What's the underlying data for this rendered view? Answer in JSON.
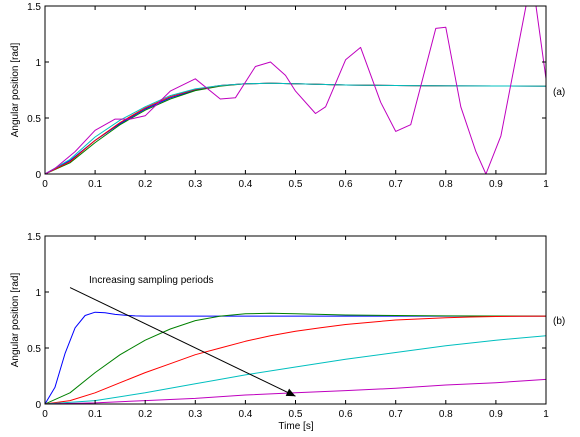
{
  "chart_data": [
    {
      "type": "line",
      "panel_label": "(a)",
      "xlabel": "",
      "ylabel": "Angular position [rad]",
      "xlim": [
        0,
        1
      ],
      "ylim": [
        0,
        1.5
      ],
      "x_ticks": [
        "0",
        "0.1",
        "0.2",
        "0.3",
        "0.4",
        "0.5",
        "0.6",
        "0.7",
        "0.8",
        "0.9",
        "1"
      ],
      "y_ticks": [
        "0",
        "0.5",
        "1",
        "1.5"
      ],
      "grid": false,
      "series": [
        {
          "color": "#0000ff",
          "x": [
            0,
            0.05,
            0.1,
            0.15,
            0.2,
            0.25,
            0.3,
            0.35,
            0.4,
            0.45,
            0.5,
            0.55,
            0.6,
            0.7,
            0.8,
            0.9,
            1.0
          ],
          "y": [
            0,
            0.12,
            0.3,
            0.45,
            0.58,
            0.68,
            0.75,
            0.79,
            0.805,
            0.81,
            0.805,
            0.8,
            0.795,
            0.79,
            0.787,
            0.786,
            0.785
          ]
        },
        {
          "color": "#008000",
          "x": [
            0,
            0.05,
            0.1,
            0.15,
            0.2,
            0.25,
            0.3,
            0.35,
            0.4,
            0.45,
            0.5,
            0.55,
            0.6,
            0.7,
            0.8,
            0.9,
            1.0
          ],
          "y": [
            0,
            0.1,
            0.28,
            0.44,
            0.57,
            0.67,
            0.745,
            0.785,
            0.805,
            0.81,
            0.806,
            0.8,
            0.795,
            0.79,
            0.787,
            0.786,
            0.785
          ]
        },
        {
          "color": "#ff0000",
          "x": [
            0,
            0.05,
            0.1,
            0.15,
            0.2,
            0.25,
            0.3,
            0.35,
            0.4,
            0.45,
            0.5,
            0.55,
            0.6,
            0.7,
            0.8,
            0.9,
            1.0
          ],
          "y": [
            0,
            0.11,
            0.3,
            0.46,
            0.59,
            0.69,
            0.755,
            0.79,
            0.806,
            0.81,
            0.806,
            0.8,
            0.795,
            0.79,
            0.787,
            0.786,
            0.785
          ]
        },
        {
          "color": "#00bfbf",
          "x": [
            0,
            0.05,
            0.1,
            0.15,
            0.2,
            0.25,
            0.3,
            0.35,
            0.4,
            0.45,
            0.5,
            0.55,
            0.6,
            0.7,
            0.8,
            0.9,
            1.0
          ],
          "y": [
            0,
            0.13,
            0.33,
            0.48,
            0.6,
            0.7,
            0.76,
            0.79,
            0.806,
            0.81,
            0.805,
            0.8,
            0.795,
            0.79,
            0.787,
            0.786,
            0.785
          ]
        },
        {
          "color": "#bf00bf",
          "x": [
            0,
            0.02,
            0.06,
            0.1,
            0.14,
            0.17,
            0.2,
            0.25,
            0.3,
            0.35,
            0.38,
            0.42,
            0.45,
            0.48,
            0.5,
            0.54,
            0.56,
            0.6,
            0.63,
            0.67,
            0.7,
            0.73,
            0.78,
            0.8,
            0.83,
            0.86,
            0.88,
            0.91,
            0.96,
            0.98,
            1.0
          ],
          "y": [
            0,
            0.05,
            0.2,
            0.39,
            0.49,
            0.49,
            0.52,
            0.74,
            0.85,
            0.67,
            0.68,
            0.96,
            1.0,
            0.88,
            0.74,
            0.54,
            0.6,
            1.02,
            1.13,
            0.64,
            0.38,
            0.44,
            1.3,
            1.31,
            0.6,
            0.2,
            0.0,
            0.34,
            1.5,
            1.5,
            0.85
          ]
        }
      ]
    },
    {
      "type": "line",
      "panel_label": "(b)",
      "xlabel": "Time [s]",
      "ylabel": "Angular position [rad]",
      "xlim": [
        0,
        1
      ],
      "ylim": [
        0,
        1.5
      ],
      "x_ticks": [
        "0",
        "0.1",
        "0.2",
        "0.3",
        "0.4",
        "0.5",
        "0.6",
        "0.7",
        "0.8",
        "0.9",
        "1"
      ],
      "y_ticks": [
        "0",
        "0.5",
        "1",
        "1.5"
      ],
      "grid": false,
      "annotation": {
        "text": "Increasing sampling periods",
        "arrow_from": [
          0.05,
          1.04
        ],
        "arrow_to": [
          0.5,
          0.07
        ]
      },
      "series": [
        {
          "color": "#0000ff",
          "x": [
            0,
            0.02,
            0.04,
            0.06,
            0.08,
            0.1,
            0.12,
            0.14,
            0.16,
            0.18,
            0.2,
            0.25,
            0.3,
            0.4,
            0.5,
            0.6,
            0.8,
            1.0
          ],
          "y": [
            0,
            0.15,
            0.45,
            0.68,
            0.79,
            0.82,
            0.815,
            0.8,
            0.792,
            0.787,
            0.785,
            0.785,
            0.785,
            0.785,
            0.785,
            0.785,
            0.785,
            0.785
          ]
        },
        {
          "color": "#008000",
          "x": [
            0,
            0.05,
            0.1,
            0.15,
            0.2,
            0.25,
            0.3,
            0.35,
            0.4,
            0.45,
            0.5,
            0.55,
            0.6,
            0.7,
            0.8,
            0.9,
            1.0
          ],
          "y": [
            0,
            0.1,
            0.28,
            0.44,
            0.57,
            0.67,
            0.745,
            0.785,
            0.805,
            0.81,
            0.806,
            0.8,
            0.795,
            0.79,
            0.787,
            0.786,
            0.785
          ]
        },
        {
          "color": "#ff0000",
          "x": [
            0,
            0.05,
            0.1,
            0.15,
            0.2,
            0.25,
            0.3,
            0.35,
            0.4,
            0.45,
            0.5,
            0.55,
            0.6,
            0.65,
            0.7,
            0.75,
            0.8,
            0.85,
            0.9,
            0.95,
            1.0
          ],
          "y": [
            0,
            0.03,
            0.1,
            0.19,
            0.28,
            0.36,
            0.44,
            0.5,
            0.56,
            0.61,
            0.65,
            0.68,
            0.71,
            0.73,
            0.75,
            0.76,
            0.77,
            0.777,
            0.781,
            0.783,
            0.785
          ]
        },
        {
          "color": "#00bfbf",
          "x": [
            0,
            0.1,
            0.2,
            0.3,
            0.4,
            0.5,
            0.6,
            0.7,
            0.8,
            0.9,
            1.0
          ],
          "y": [
            0,
            0.03,
            0.1,
            0.18,
            0.26,
            0.33,
            0.4,
            0.46,
            0.52,
            0.57,
            0.61
          ]
        },
        {
          "color": "#bf00bf",
          "x": [
            0,
            0.1,
            0.2,
            0.3,
            0.4,
            0.5,
            0.6,
            0.7,
            0.8,
            0.9,
            1.0
          ],
          "y": [
            0,
            0.01,
            0.03,
            0.05,
            0.08,
            0.1,
            0.12,
            0.14,
            0.17,
            0.19,
            0.22
          ]
        }
      ]
    }
  ]
}
